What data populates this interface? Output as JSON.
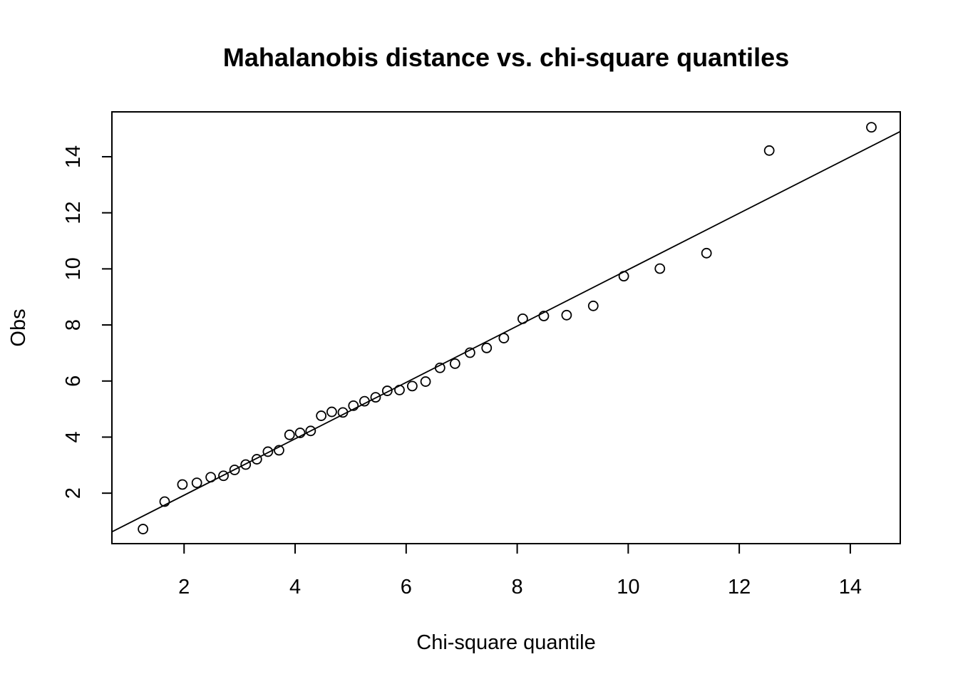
{
  "chart_data": {
    "type": "scatter",
    "title": "Mahalanobis distance vs. chi-square quantiles",
    "xlabel": "Chi-square quantile",
    "ylabel": "Obs",
    "xlim": [
      0.7,
      14.9
    ],
    "ylim": [
      0.2,
      15.6
    ],
    "xticks": [
      2,
      4,
      6,
      8,
      10,
      12,
      14
    ],
    "yticks": [
      2,
      4,
      6,
      8,
      10,
      12,
      14
    ],
    "grid": false,
    "legend": "none",
    "points": {
      "x": [
        1.26,
        1.65,
        1.97,
        2.23,
        2.48,
        2.71,
        2.91,
        3.11,
        3.31,
        3.51,
        3.71,
        3.9,
        4.09,
        4.28,
        4.47,
        4.66,
        4.86,
        5.05,
        5.25,
        5.45,
        5.66,
        5.88,
        6.11,
        6.35,
        6.61,
        6.88,
        7.15,
        7.45,
        7.76,
        8.1,
        8.48,
        8.89,
        9.37,
        9.92,
        10.57,
        11.41,
        12.54,
        14.38
      ],
      "y": [
        0.72,
        1.7,
        2.31,
        2.37,
        2.57,
        2.62,
        2.83,
        3.02,
        3.21,
        3.48,
        3.53,
        4.08,
        4.15,
        4.22,
        4.76,
        4.9,
        4.88,
        5.12,
        5.28,
        5.42,
        5.65,
        5.68,
        5.82,
        5.98,
        6.47,
        6.62,
        7.01,
        7.18,
        7.53,
        8.22,
        8.32,
        8.35,
        8.68,
        9.74,
        10.01,
        10.56,
        14.22,
        15.05
      ]
    },
    "reference_line": {
      "x": [
        0.7,
        14.9
      ],
      "y": [
        0.62,
        14.9
      ]
    }
  }
}
